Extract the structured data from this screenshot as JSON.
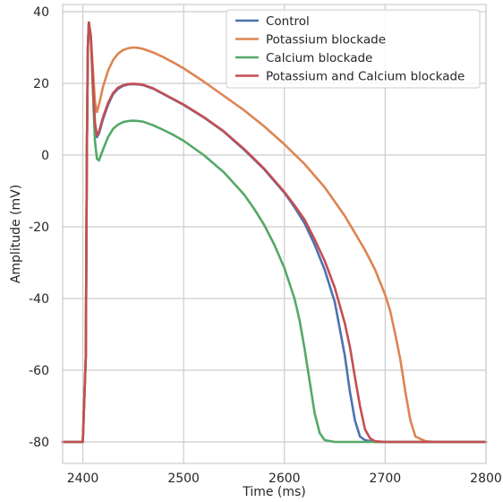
{
  "chart_data": {
    "type": "line",
    "title": "",
    "xlabel": "Time (ms)",
    "ylabel": "Amplitude (mV)",
    "xlim": [
      2380,
      2800
    ],
    "ylim": [
      -86,
      42
    ],
    "xticks": [
      2400,
      2500,
      2600,
      2700,
      2800
    ],
    "yticks": [
      -80,
      -60,
      -40,
      -20,
      0,
      20,
      40
    ],
    "grid": true,
    "legend_position": "top-right",
    "series": [
      {
        "name": "Control",
        "color": "#4c72b0",
        "x": [
          2380,
          2400,
          2403,
          2404,
          2405,
          2406,
          2408,
          2410,
          2412,
          2414,
          2416,
          2420,
          2425,
          2430,
          2435,
          2440,
          2445,
          2450,
          2455,
          2460,
          2470,
          2480,
          2490,
          2500,
          2520,
          2540,
          2560,
          2580,
          2600,
          2610,
          2620,
          2630,
          2640,
          2650,
          2660,
          2665,
          2670,
          2675,
          2680,
          2690,
          2700,
          2800
        ],
        "y": [
          -80,
          -80,
          -56,
          0,
          30,
          37,
          33,
          20,
          9,
          5,
          6,
          10,
          14,
          17,
          18.5,
          19.3,
          19.7,
          19.8,
          19.7,
          19.5,
          18.5,
          17,
          15.5,
          14,
          10.5,
          6.5,
          1.5,
          -4,
          -10.5,
          -14.5,
          -19,
          -25,
          -32,
          -41,
          -56,
          -66,
          -74,
          -78.5,
          -79.5,
          -80,
          -80,
          -80
        ]
      },
      {
        "name": "Potassium blockade",
        "color": "#dd8452",
        "x": [
          2380,
          2400,
          2403,
          2404,
          2405,
          2406,
          2408,
          2410,
          2412,
          2414,
          2416,
          2420,
          2425,
          2430,
          2435,
          2440,
          2445,
          2450,
          2455,
          2460,
          2470,
          2480,
          2490,
          2500,
          2520,
          2540,
          2560,
          2580,
          2600,
          2620,
          2640,
          2660,
          2680,
          2690,
          2700,
          2705,
          2710,
          2715,
          2720,
          2725,
          2730,
          2740,
          2750,
          2800
        ],
        "y": [
          -80,
          -80,
          -56,
          0,
          30,
          37,
          33,
          24,
          15,
          12,
          14,
          19,
          23.5,
          26.5,
          28.3,
          29.3,
          29.8,
          30,
          29.9,
          29.6,
          28.6,
          27.3,
          25.8,
          24.2,
          20.5,
          16.5,
          12.5,
          8,
          3,
          -2.5,
          -9,
          -17,
          -26.5,
          -32,
          -39,
          -43.5,
          -50,
          -57,
          -66,
          -74,
          -78.5,
          -79.8,
          -80,
          -80
        ]
      },
      {
        "name": "Calcium blockade",
        "color": "#55a868",
        "x": [
          2380,
          2400,
          2403,
          2404,
          2405,
          2406,
          2408,
          2410,
          2412,
          2414,
          2416,
          2420,
          2425,
          2430,
          2435,
          2440,
          2445,
          2450,
          2455,
          2460,
          2470,
          2480,
          2490,
          2500,
          2520,
          2540,
          2560,
          2570,
          2580,
          2590,
          2600,
          2610,
          2615,
          2620,
          2625,
          2630,
          2635,
          2640,
          2650,
          2700,
          2800
        ],
        "y": [
          -80,
          -80,
          -56,
          0,
          30,
          37,
          33,
          18,
          4,
          -1,
          -1.5,
          1.5,
          5,
          7.3,
          8.5,
          9.2,
          9.5,
          9.6,
          9.5,
          9.3,
          8.3,
          7,
          5.6,
          4,
          0,
          -4.8,
          -11,
          -15,
          -19.5,
          -25,
          -31.5,
          -40,
          -46,
          -54,
          -63,
          -72,
          -77.5,
          -79.5,
          -80,
          -80,
          -80
        ]
      },
      {
        "name": "Potassium and Calcium blockade",
        "color": "#c44e52",
        "x": [
          2380,
          2400,
          2403,
          2404,
          2405,
          2406,
          2408,
          2410,
          2412,
          2414,
          2416,
          2420,
          2425,
          2430,
          2435,
          2440,
          2445,
          2450,
          2455,
          2460,
          2470,
          2480,
          2490,
          2500,
          2520,
          2540,
          2560,
          2580,
          2600,
          2610,
          2620,
          2630,
          2640,
          2650,
          2660,
          2665,
          2670,
          2675,
          2680,
          2685,
          2690,
          2700,
          2800
        ],
        "y": [
          -80,
          -80,
          -56,
          0,
          30,
          37,
          33,
          20,
          9,
          5.5,
          6.5,
          10.5,
          14.5,
          17.3,
          18.8,
          19.5,
          19.8,
          19.9,
          19.8,
          19.6,
          18.6,
          17.1,
          15.6,
          14.1,
          10.6,
          6.6,
          1.7,
          -3.8,
          -10.3,
          -14,
          -18,
          -23.5,
          -29.5,
          -37,
          -47,
          -53.5,
          -62,
          -70,
          -76.5,
          -79,
          -79.8,
          -80,
          -80
        ]
      }
    ]
  }
}
